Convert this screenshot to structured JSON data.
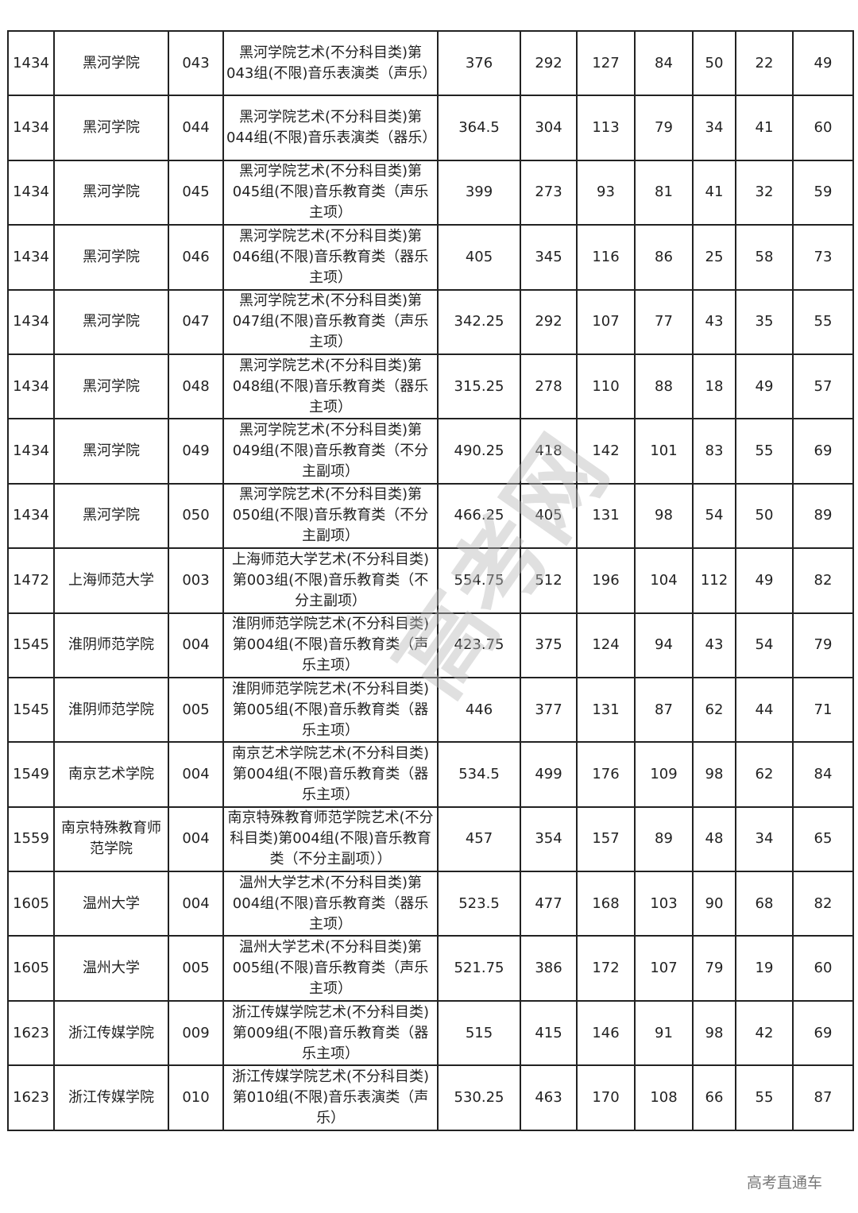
{
  "rows": [
    [
      "1434",
      "黑河学院",
      "043",
      "黑河学院艺术(不分科目类)第043组(不限)音乐表演类（声乐）",
      "376",
      "292",
      "127",
      "84",
      "50",
      "22",
      "49"
    ],
    [
      "1434",
      "黑河学院",
      "044",
      "黑河学院艺术(不分科目类)第044组(不限)音乐表演类（器乐）",
      "364.5",
      "304",
      "113",
      "79",
      "34",
      "41",
      "60"
    ],
    [
      "1434",
      "黑河学院",
      "045",
      "黑河学院艺术(不分科目类)第045组(不限)音乐教育类（声乐主项）",
      "399",
      "273",
      "93",
      "81",
      "41",
      "32",
      "59"
    ],
    [
      "1434",
      "黑河学院",
      "046",
      "黑河学院艺术(不分科目类)第046组(不限)音乐教育类（器乐主项）",
      "405",
      "345",
      "116",
      "86",
      "25",
      "58",
      "73"
    ],
    [
      "1434",
      "黑河学院",
      "047",
      "黑河学院艺术(不分科目类)第047组(不限)音乐教育类（声乐主项）",
      "342.25",
      "292",
      "107",
      "77",
      "43",
      "35",
      "55"
    ],
    [
      "1434",
      "黑河学院",
      "048",
      "黑河学院艺术(不分科目类)第048组(不限)音乐教育类（器乐主项）",
      "315.25",
      "278",
      "110",
      "88",
      "18",
      "49",
      "57"
    ],
    [
      "1434",
      "黑河学院",
      "049",
      "黑河学院艺术(不分科目类)第049组(不限)音乐教育类（不分主副项）",
      "490.25",
      "418",
      "142",
      "101",
      "83",
      "55",
      "69"
    ],
    [
      "1434",
      "黑河学院",
      "050",
      "黑河学院艺术(不分科目类)第050组(不限)音乐教育类（不分主副项）",
      "466.25",
      "405",
      "131",
      "98",
      "54",
      "50",
      "89"
    ],
    [
      "1472",
      "上海师范大学",
      "003",
      "上海师范大学艺术(不分科目类)第003组(不限)音乐教育类（不分主副项）",
      "554.75",
      "512",
      "196",
      "104",
      "112",
      "49",
      "82"
    ],
    [
      "1545",
      "淮阴师范学院",
      "004",
      "淮阴师范学院艺术(不分科目类)第004组(不限)音乐教育类（声乐主项）",
      "423.75",
      "375",
      "124",
      "94",
      "43",
      "54",
      "79"
    ],
    [
      "1545",
      "淮阴师范学院",
      "005",
      "淮阴师范学院艺术(不分科目类)第005组(不限)音乐教育类（器乐主项）",
      "446",
      "377",
      "131",
      "87",
      "62",
      "44",
      "71"
    ],
    [
      "1549",
      "南京艺术学院",
      "004",
      "南京艺术学院艺术(不分科目类)第004组(不限)音乐教育类（器乐主项）",
      "534.5",
      "499",
      "176",
      "109",
      "98",
      "62",
      "84"
    ],
    [
      "1559",
      "南京特殊教育师范学院",
      "004",
      "南京特殊教育师范学院艺术(不分科目类)第004组(不限)音乐教育类（不分主副项））",
      "457",
      "354",
      "157",
      "89",
      "48",
      "34",
      "65"
    ],
    [
      "1605",
      "温州大学",
      "004",
      "温州大学艺术(不分科目类)第004组(不限)音乐教育类（器乐主项）",
      "523.5",
      "477",
      "168",
      "103",
      "90",
      "68",
      "82"
    ],
    [
      "1605",
      "温州大学",
      "005",
      "温州大学艺术(不分科目类)第005组(不限)音乐教育类（声乐主项）",
      "521.75",
      "386",
      "172",
      "107",
      "79",
      "19",
      "60"
    ],
    [
      "1623",
      "浙江传媒学院",
      "009",
      "浙江传媒学院艺术(不分科目类)第009组(不限)音乐教育类（器乐主项）",
      "515",
      "415",
      "146",
      "91",
      "98",
      "42",
      "69"
    ],
    [
      "1623",
      "浙江传媒学院",
      "010",
      "浙江传媒学院艺术(不分科目类)第010组(不限)音乐表演类（声乐）",
      "530.25",
      "463",
      "170",
      "108",
      "66",
      "55",
      "87"
    ]
  ],
  "watermark": "高考网",
  "logo_text": "高考直通车"
}
